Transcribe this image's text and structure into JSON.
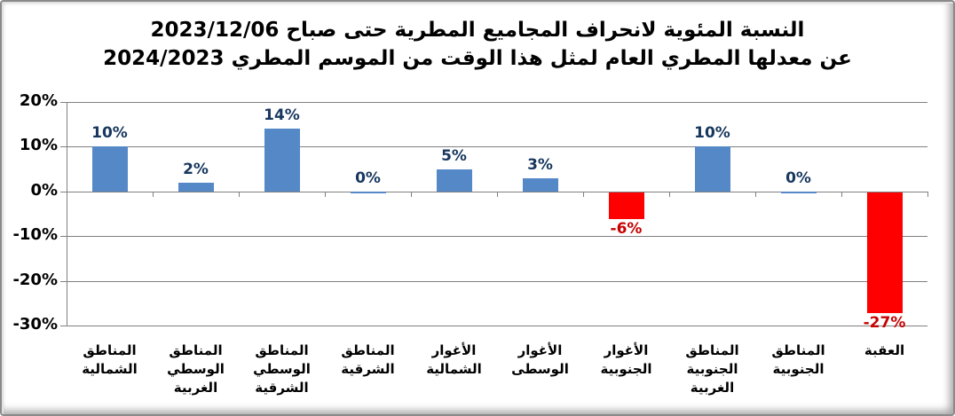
{
  "title": {
    "line1": "النسبة المئوية لانحراف المجاميع المطرية حتى صباح 2023/12/06",
    "line2": "عن معدلها المطري العام لمثل هذا الوقت من الموسم المطري 2024/2023"
  },
  "chart_data": {
    "type": "bar",
    "title": "النسبة المئوية لانحراف المجاميع المطرية حتى صباح 2023/12/06 عن معدلها المطري العام لمثل هذا الوقت من الموسم المطري 2024/2023",
    "categories": [
      "المناطق الشمالية",
      "المناطق الوسطي الغربية",
      "المناطق الوسطي الشرقية",
      "المناطق الشرقية",
      "الأغوار الشمالية",
      "الأغوار الوسطى",
      "الأغوار الجنوبية",
      "المناطق الجنوبية الغربية",
      "المناطق الجنوبية",
      "العقبة"
    ],
    "category_lines": [
      [
        "المناطق",
        "الشمالية"
      ],
      [
        "المناطق",
        "الوسطي",
        "الغربية"
      ],
      [
        "المناطق",
        "الوسطي",
        "الشرقية"
      ],
      [
        "المناطق",
        "الشرقية"
      ],
      [
        "الأغوار",
        "الشمالية"
      ],
      [
        "الأغوار",
        "الوسطى"
      ],
      [
        "الأغوار",
        "الجنوبية"
      ],
      [
        "المناطق",
        "الجنوبية",
        "الغربية"
      ],
      [
        "المناطق",
        "الجنوبية"
      ],
      [
        "العقبة"
      ]
    ],
    "values": [
      10,
      2,
      14,
      0,
      5,
      3,
      -6,
      10,
      0,
      -27
    ],
    "value_labels": [
      "10%",
      "2%",
      "14%",
      "0%",
      "5%",
      "3%",
      "-6%",
      "10%",
      "0%",
      "-27%"
    ],
    "ylim": [
      -30,
      20
    ],
    "yticks": [
      20,
      10,
      0,
      -10,
      -20,
      -30
    ],
    "ytick_labels": [
      "20%",
      "10%",
      "0%",
      "-10%",
      "-20%",
      "-30%"
    ],
    "grid": true,
    "legend": false,
    "colors": {
      "bar_positive": "#5588C7",
      "bar_negative": "#FF0000",
      "label_positive": "#17375E",
      "label_negative": "#C80000",
      "gridline": "#808080",
      "axis": "#808080",
      "title_text": "#000000",
      "tick_text": "#000000"
    }
  }
}
